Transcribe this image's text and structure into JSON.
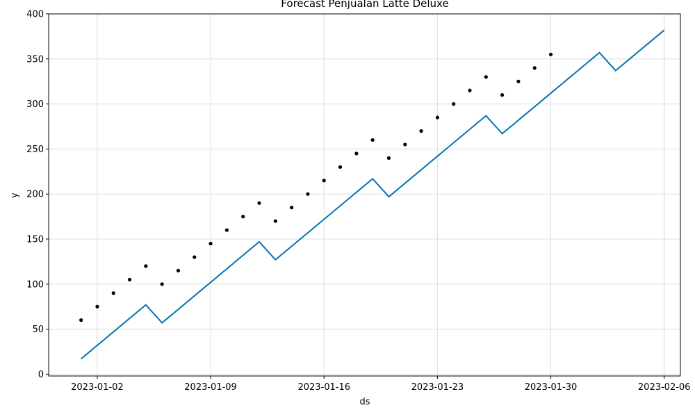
{
  "chart_data": {
    "type": "line",
    "title": "Forecast Penjualan Latte Deluxe",
    "xlabel": "ds",
    "ylabel": "y",
    "x_ticks": [
      "2023-01-02",
      "2023-01-09",
      "2023-01-16",
      "2023-01-23",
      "2023-01-30",
      "2023-02-06"
    ],
    "y_ticks": [
      0,
      50,
      100,
      150,
      200,
      250,
      300,
      350,
      400
    ],
    "xlim": [
      "2022-12-30",
      "2023-02-07"
    ],
    "ylim": [
      -2,
      400
    ],
    "grid": true,
    "series": [
      {
        "kind": "scatter",
        "color": "#000000",
        "points": [
          {
            "x": "2023-01-01",
            "y": 60
          },
          {
            "x": "2023-01-02",
            "y": 75
          },
          {
            "x": "2023-01-03",
            "y": 90
          },
          {
            "x": "2023-01-04",
            "y": 105
          },
          {
            "x": "2023-01-05",
            "y": 120
          },
          {
            "x": "2023-01-06",
            "y": 100
          },
          {
            "x": "2023-01-07",
            "y": 115
          },
          {
            "x": "2023-01-08",
            "y": 130
          },
          {
            "x": "2023-01-09",
            "y": 145
          },
          {
            "x": "2023-01-10",
            "y": 160
          },
          {
            "x": "2023-01-11",
            "y": 175
          },
          {
            "x": "2023-01-12",
            "y": 190
          },
          {
            "x": "2023-01-13",
            "y": 170
          },
          {
            "x": "2023-01-14",
            "y": 185
          },
          {
            "x": "2023-01-15",
            "y": 200
          },
          {
            "x": "2023-01-16",
            "y": 215
          },
          {
            "x": "2023-01-17",
            "y": 230
          },
          {
            "x": "2023-01-18",
            "y": 245
          },
          {
            "x": "2023-01-19",
            "y": 260
          },
          {
            "x": "2023-01-20",
            "y": 240
          },
          {
            "x": "2023-01-21",
            "y": 255
          },
          {
            "x": "2023-01-22",
            "y": 270
          },
          {
            "x": "2023-01-23",
            "y": 285
          },
          {
            "x": "2023-01-24",
            "y": 300
          },
          {
            "x": "2023-01-25",
            "y": 315
          },
          {
            "x": "2023-01-26",
            "y": 330
          },
          {
            "x": "2023-01-27",
            "y": 310
          },
          {
            "x": "2023-01-28",
            "y": 325
          },
          {
            "x": "2023-01-29",
            "y": 340
          },
          {
            "x": "2023-01-30",
            "y": 355
          }
        ]
      },
      {
        "kind": "line",
        "color": "#0072B2",
        "points": [
          {
            "x": "2023-01-01",
            "y": 17
          },
          {
            "x": "2023-01-05",
            "y": 77
          },
          {
            "x": "2023-01-06",
            "y": 57
          },
          {
            "x": "2023-01-12",
            "y": 147
          },
          {
            "x": "2023-01-13",
            "y": 127
          },
          {
            "x": "2023-01-19",
            "y": 217
          },
          {
            "x": "2023-01-20",
            "y": 197
          },
          {
            "x": "2023-01-26",
            "y": 287
          },
          {
            "x": "2023-01-27",
            "y": 267
          },
          {
            "x": "2023-02-02",
            "y": 357
          },
          {
            "x": "2023-02-03",
            "y": 337
          },
          {
            "x": "2023-02-06",
            "y": 382
          }
        ]
      }
    ]
  }
}
